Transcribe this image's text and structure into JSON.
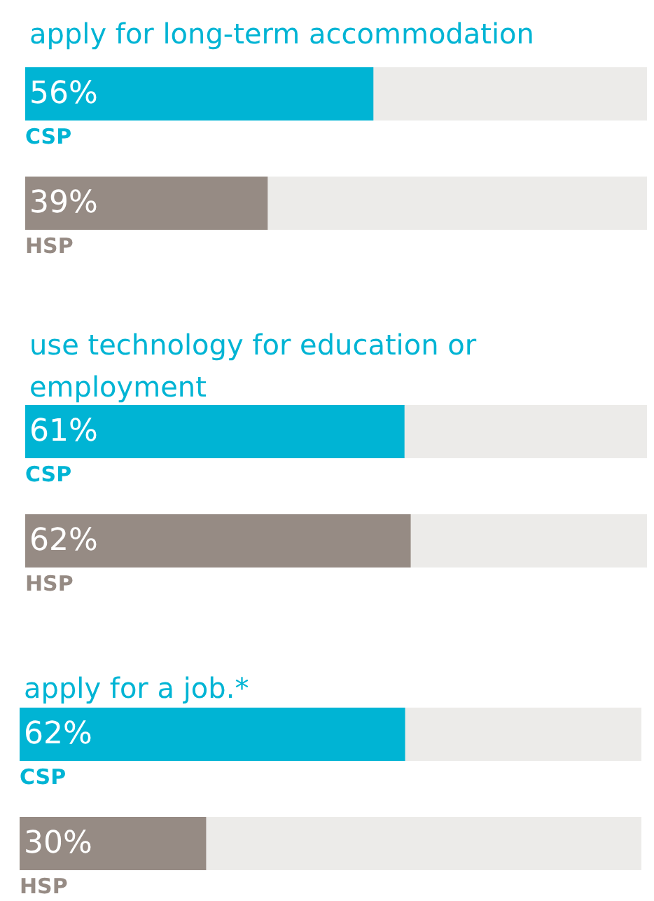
{
  "chart_data": [
    {
      "type": "bar",
      "orientation": "horizontal",
      "title": "apply for long-term accommodation",
      "categories": [
        "CSP",
        "HSP"
      ],
      "values": [
        56,
        39
      ],
      "colors": [
        "#00b4d4",
        "#968b84"
      ],
      "value_labels": [
        "56%",
        "39%"
      ],
      "xlim": [
        0,
        100
      ],
      "tick_labels": "y"
    },
    {
      "type": "bar",
      "orientation": "horizontal",
      "title": "use technology for education or employment",
      "categories": [
        "CSP",
        "HSP"
      ],
      "values": [
        61,
        62
      ],
      "colors": [
        "#00b4d4",
        "#968b84"
      ],
      "value_labels": [
        "61%",
        "62%"
      ],
      "xlim": [
        0,
        100
      ],
      "tick_labels": "y"
    },
    {
      "type": "bar",
      "orientation": "horizontal",
      "title": "apply for a job.*",
      "categories": [
        "CSP",
        "HSP"
      ],
      "values": [
        62,
        30
      ],
      "colors": [
        "#00b4d4",
        "#968b84"
      ],
      "value_labels": [
        "62%",
        "30%"
      ],
      "xlim": [
        0,
        100
      ],
      "tick_labels": "y"
    }
  ]
}
